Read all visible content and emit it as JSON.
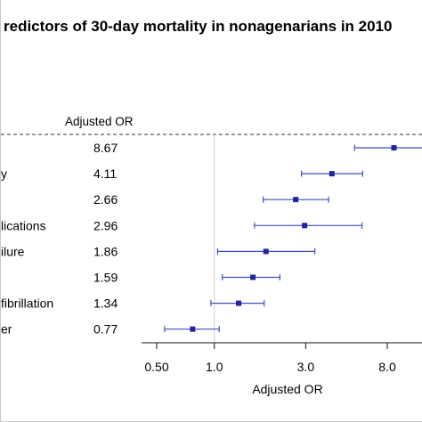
{
  "chart_data": {
    "type": "forest",
    "title": "redictors of 30-day mortality in nonagenarians in 2010",
    "column_header": "Adjusted OR",
    "xlabel": "Adjusted OR",
    "x_scale": "log",
    "xlim": [
      0.44,
      12
    ],
    "reference_line": 1.0,
    "ticks": [
      {
        "value": 0.5,
        "label": "0.50"
      },
      {
        "value": 1.0,
        "label": "1.0"
      },
      {
        "value": 3.0,
        "label": "3.0"
      },
      {
        "value": 8.0,
        "label": "8.0"
      }
    ],
    "rows": [
      {
        "label": "",
        "or_text": "8.67",
        "or": 8.67,
        "lo": 5.4,
        "hi": 13.5
      },
      {
        "label": "y",
        "or_text": "4.11",
        "or": 4.11,
        "lo": 2.85,
        "hi": 5.95
      },
      {
        "label": "",
        "or_text": "2.66",
        "or": 2.66,
        "lo": 1.8,
        "hi": 3.95
      },
      {
        "label": "lications",
        "or_text": "2.96",
        "or": 2.96,
        "lo": 1.62,
        "hi": 5.9
      },
      {
        "label": "ilure",
        "or_text": "1.86",
        "or": 1.86,
        "lo": 1.04,
        "hi": 3.35
      },
      {
        "label": "",
        "or_text": "1.59",
        "or": 1.59,
        "lo": 1.1,
        "hi": 2.2
      },
      {
        "label": "fibrillation",
        "or_text": "1.34",
        "or": 1.34,
        "lo": 0.96,
        "hi": 1.82
      },
      {
        "label": "er",
        "or_text": "0.77",
        "or": 0.77,
        "lo": 0.55,
        "hi": 1.06
      }
    ],
    "colors": {
      "marker": "#1f23a8",
      "ci_line": "#3e4fc0",
      "reference": "#d0d0d0",
      "text": "#111111"
    }
  }
}
